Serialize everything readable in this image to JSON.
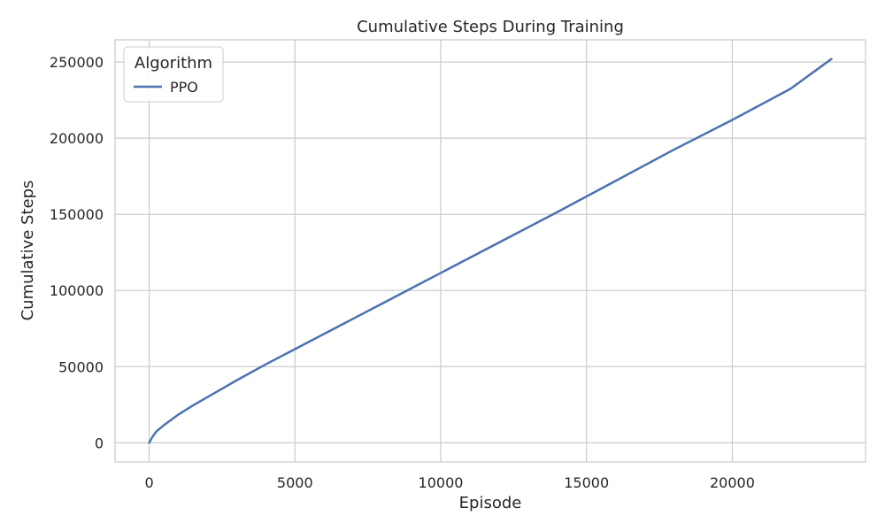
{
  "chart_data": {
    "type": "line",
    "title": "Cumulative Steps During Training",
    "xlabel": "Episode",
    "ylabel": "Cumulative Steps",
    "xlim": [
      -1170,
      24570
    ],
    "ylim": [
      -12600,
      264600
    ],
    "xticks": [
      0,
      5000,
      10000,
      15000,
      20000
    ],
    "yticks": [
      0,
      50000,
      100000,
      150000,
      200000,
      250000
    ],
    "grid": true,
    "legend": {
      "title": "Algorithm",
      "placement": "top-left"
    },
    "series": [
      {
        "name": "PPO",
        "color": "#4c72b0",
        "x": [
          0,
          100,
          250,
          500,
          750,
          1000,
          1500,
          2000,
          3000,
          4000,
          5000,
          6000,
          7000,
          8000,
          9000,
          10000,
          12000,
          14000,
          16000,
          18000,
          20000,
          22000,
          23400
        ],
        "y": [
          0,
          3500,
          7500,
          11500,
          15000,
          18500,
          24500,
          30000,
          41000,
          51500,
          61500,
          71500,
          81500,
          91500,
          101500,
          111500,
          131500,
          151500,
          172000,
          192500,
          212000,
          232500,
          252000
        ]
      }
    ]
  }
}
